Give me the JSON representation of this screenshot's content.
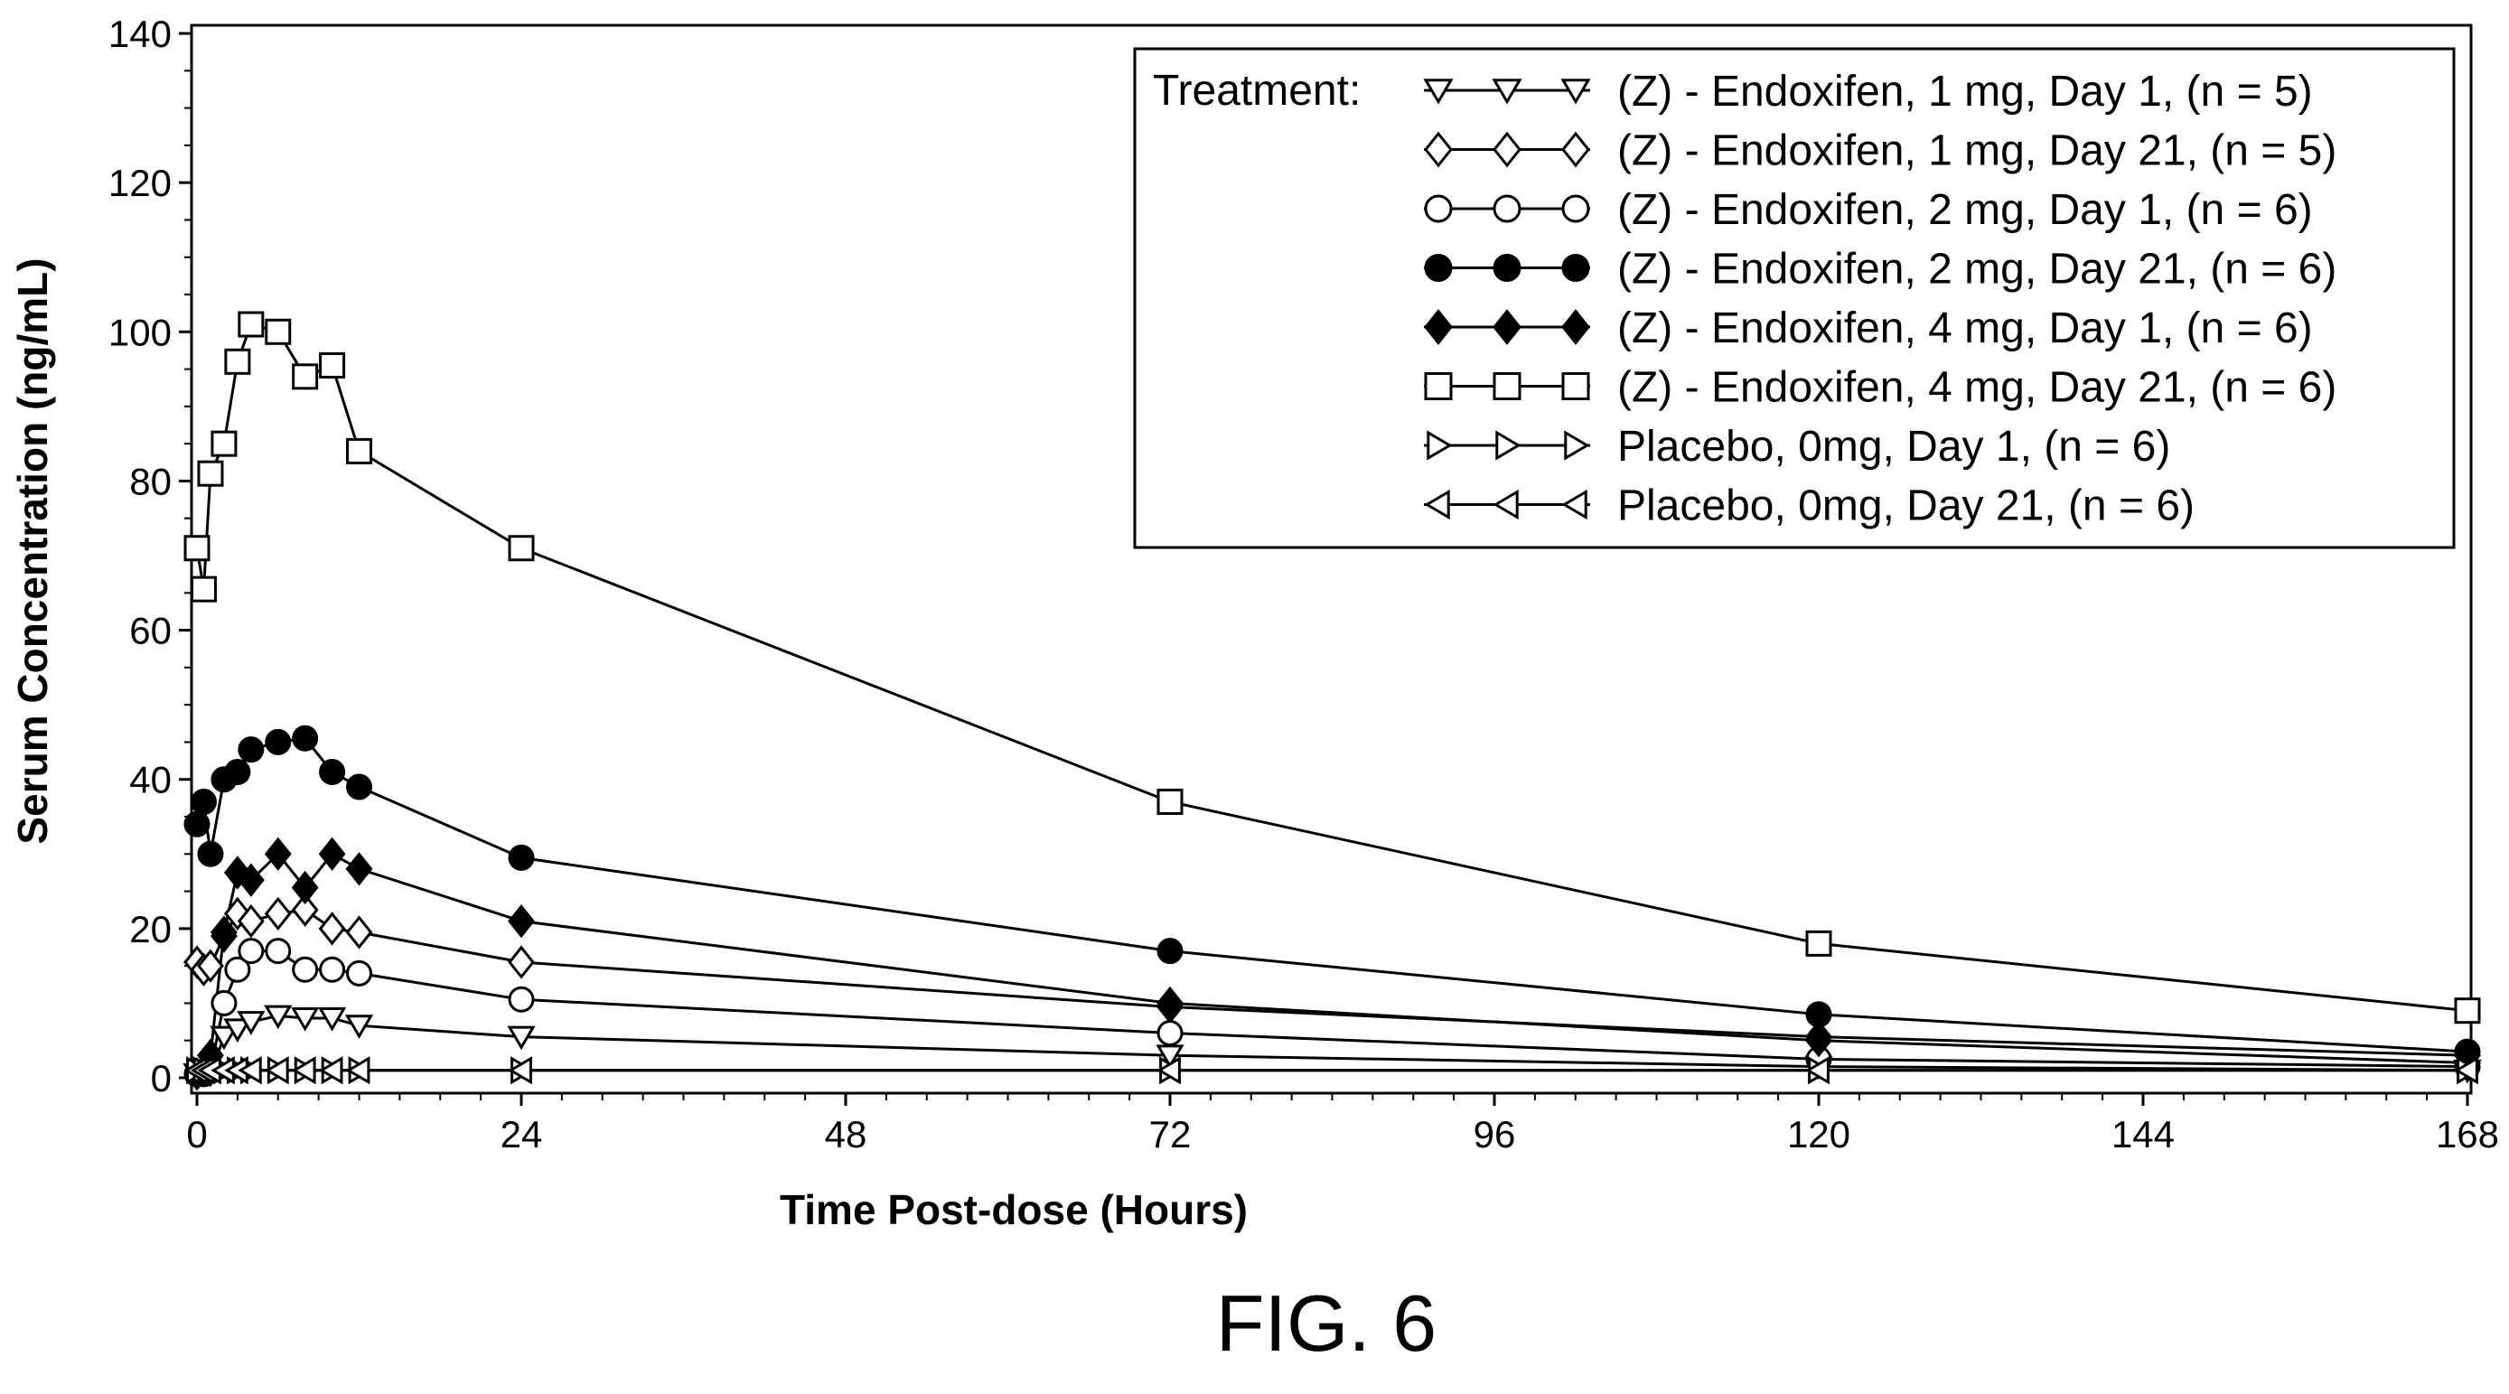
{
  "figure": {
    "caption": "FIG. 6"
  },
  "chart_data": {
    "type": "line",
    "xlabel": "Time Post-dose (Hours)",
    "ylabel": "Serum Concentration (ng/mL)",
    "xlim": [
      0,
      168
    ],
    "ylim": [
      0,
      140
    ],
    "x_ticks": [
      0,
      24,
      48,
      72,
      96,
      120,
      144,
      168
    ],
    "y_ticks": [
      0,
      20,
      40,
      60,
      80,
      100,
      120,
      140
    ],
    "grid": false,
    "legend": {
      "title": "Treatment:",
      "placement": "top-right"
    },
    "series": [
      {
        "name": "(Z) - Endoxifen, 1 mg, Day 1, (n = 5)",
        "marker": "triangle-down",
        "filled": false,
        "x": [
          0,
          0.5,
          1,
          2,
          3,
          4,
          6,
          8,
          10,
          12,
          24,
          72,
          120,
          168
        ],
        "y": [
          0.5,
          0.5,
          0.5,
          5.5,
          6.5,
          7.5,
          8.3,
          8,
          8,
          7,
          5.5,
          3,
          1.5,
          1
        ]
      },
      {
        "name": "(Z) - Endoxifen, 1 mg, Day 21, (n = 5)",
        "marker": "diamond",
        "filled": false,
        "x": [
          0,
          0.5,
          1,
          2,
          3,
          4,
          6,
          8,
          10,
          12,
          24,
          72,
          120,
          168
        ],
        "y": [
          15.5,
          14.5,
          15,
          19,
          22,
          21,
          22,
          22.5,
          20,
          19.5,
          15.5,
          9.5,
          5.5,
          3
        ]
      },
      {
        "name": "(Z) - Endoxifen, 2 mg, Day 1, (n = 6)",
        "marker": "circle",
        "filled": false,
        "x": [
          0,
          0.5,
          1,
          2,
          3,
          4,
          6,
          8,
          10,
          12,
          24,
          72,
          120,
          168
        ],
        "y": [
          0.5,
          0.5,
          1,
          10,
          14.5,
          17,
          17,
          14.5,
          14.5,
          14,
          10.5,
          6,
          2.5,
          1.5
        ]
      },
      {
        "name": "(Z) - Endoxifen, 2 mg, Day 21, (n = 6)",
        "marker": "circle",
        "filled": true,
        "x": [
          0,
          0.5,
          1,
          2,
          3,
          4,
          6,
          8,
          10,
          12,
          24,
          72,
          120,
          168
        ],
        "y": [
          34,
          37,
          30,
          40,
          41,
          44,
          45,
          45.5,
          41,
          39,
          29.5,
          17,
          8.5,
          3.5
        ]
      },
      {
        "name": "(Z) - Endoxifen, 4 mg, Day 1, (n = 6)",
        "marker": "diamond",
        "filled": true,
        "x": [
          0,
          0.5,
          1,
          2,
          3,
          4,
          6,
          8,
          10,
          12,
          24,
          72,
          120,
          168
        ],
        "y": [
          0.5,
          1,
          3,
          19.5,
          27.5,
          26.5,
          30,
          25.5,
          30,
          28,
          21,
          10,
          5,
          2
        ]
      },
      {
        "name": "(Z) - Endoxifen, 4 mg, Day 21, (n = 6)",
        "marker": "square",
        "filled": false,
        "x": [
          0,
          0.5,
          1,
          2,
          3,
          4,
          6,
          8,
          10,
          12,
          24,
          72,
          120,
          168
        ],
        "y": [
          71,
          65.5,
          81,
          85,
          96,
          101,
          100,
          94,
          95.5,
          84,
          71,
          37,
          18,
          9
        ]
      },
      {
        "name": "Placebo, 0mg, Day 1, (n = 6)",
        "marker": "triangle-right",
        "filled": false,
        "x": [
          0,
          0.5,
          1,
          2,
          3,
          4,
          6,
          8,
          10,
          12,
          24,
          72,
          120,
          168
        ],
        "y": [
          1,
          1,
          1,
          1,
          1,
          1,
          1,
          1,
          1,
          1,
          1,
          1,
          1,
          1
        ]
      },
      {
        "name": "Placebo, 0mg, Day 21, (n = 6)",
        "marker": "triangle-left",
        "filled": false,
        "x": [
          0,
          0.5,
          1,
          2,
          3,
          4,
          6,
          8,
          10,
          12,
          24,
          72,
          120,
          168
        ],
        "y": [
          1,
          1,
          1,
          1,
          1,
          1,
          1,
          1,
          1,
          1,
          1,
          1,
          1,
          1
        ]
      }
    ]
  }
}
